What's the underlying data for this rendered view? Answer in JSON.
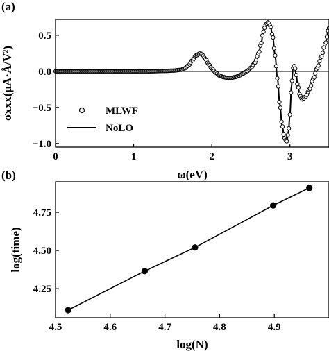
{
  "chart_data": [
    {
      "panel_label": "(a)",
      "type": "line",
      "xlabel": "ω(eV)",
      "ylabel": "σxxx(μA·Å/V²)",
      "xlim": [
        0,
        3.5
      ],
      "ylim": [
        -1.05,
        0.72
      ],
      "xticks": [
        0,
        1,
        2,
        3
      ],
      "yticks": [
        -1.0,
        -0.5,
        0.0,
        0.5
      ],
      "ytick_labels": [
        "−1.0",
        "−0.5",
        "0.0",
        "0.5"
      ],
      "zero_line": true,
      "legend": {
        "position": "bottom-left",
        "entries": [
          "MLWF",
          "NoLO"
        ]
      },
      "series": [
        {
          "name": "MLWF",
          "style": "open-circle-markers",
          "x": [
            0.0,
            0.2,
            0.4,
            0.6,
            0.8,
            1.0,
            1.2,
            1.4,
            1.5,
            1.6,
            1.65,
            1.7,
            1.75,
            1.8,
            1.85,
            1.88,
            1.92,
            1.96,
            2.0,
            2.05,
            2.1,
            2.15,
            2.2,
            2.25,
            2.3,
            2.35,
            2.4,
            2.45,
            2.5,
            2.55,
            2.6,
            2.63,
            2.66,
            2.69,
            2.72,
            2.75,
            2.78,
            2.81,
            2.84,
            2.87,
            2.9,
            2.93,
            2.96,
            2.98,
            3.0,
            3.02,
            3.04,
            3.06,
            3.08,
            3.1,
            3.13,
            3.16,
            3.2,
            3.25,
            3.3,
            3.35,
            3.4,
            3.45,
            3.5
          ],
          "y": [
            0.0,
            0.0,
            0.0,
            0.0,
            0.0,
            0.0,
            0.0,
            0.005,
            0.01,
            0.02,
            0.04,
            0.08,
            0.15,
            0.22,
            0.25,
            0.23,
            0.17,
            0.1,
            0.04,
            -0.02,
            -0.06,
            -0.08,
            -0.09,
            -0.09,
            -0.08,
            -0.06,
            -0.03,
            0.0,
            0.05,
            0.12,
            0.25,
            0.38,
            0.55,
            0.65,
            0.68,
            0.63,
            0.48,
            0.22,
            -0.1,
            -0.45,
            -0.75,
            -0.93,
            -0.97,
            -0.85,
            -0.6,
            -0.2,
            0.05,
            0.08,
            -0.05,
            -0.2,
            -0.34,
            -0.39,
            -0.35,
            -0.25,
            -0.1,
            0.05,
            0.2,
            0.38,
            0.6
          ]
        },
        {
          "name": "NoLO",
          "style": "solid-line",
          "x": [
            0.0,
            0.2,
            0.4,
            0.6,
            0.8,
            1.0,
            1.2,
            1.4,
            1.5,
            1.6,
            1.65,
            1.7,
            1.75,
            1.8,
            1.85,
            1.88,
            1.92,
            1.96,
            2.0,
            2.05,
            2.1,
            2.15,
            2.2,
            2.25,
            2.3,
            2.35,
            2.4,
            2.45,
            2.5,
            2.55,
            2.6,
            2.63,
            2.66,
            2.69,
            2.72,
            2.75,
            2.78,
            2.81,
            2.84,
            2.87,
            2.9,
            2.93,
            2.96,
            2.98,
            3.0,
            3.02,
            3.04,
            3.06,
            3.08,
            3.1,
            3.13,
            3.16,
            3.2,
            3.25,
            3.3,
            3.35,
            3.4,
            3.45,
            3.5
          ],
          "y": [
            0.0,
            0.0,
            0.0,
            0.0,
            0.0,
            0.0,
            0.0,
            0.005,
            0.01,
            0.02,
            0.04,
            0.08,
            0.15,
            0.22,
            0.25,
            0.23,
            0.17,
            0.1,
            0.04,
            -0.02,
            -0.06,
            -0.08,
            -0.09,
            -0.09,
            -0.08,
            -0.06,
            -0.03,
            0.0,
            0.05,
            0.12,
            0.25,
            0.38,
            0.55,
            0.65,
            0.68,
            0.63,
            0.48,
            0.22,
            -0.1,
            -0.45,
            -0.75,
            -0.93,
            -0.97,
            -0.85,
            -0.6,
            -0.2,
            0.05,
            0.08,
            -0.05,
            -0.2,
            -0.34,
            -0.39,
            -0.35,
            -0.25,
            -0.1,
            0.05,
            0.2,
            0.38,
            0.6
          ]
        }
      ]
    },
    {
      "panel_label": "(b)",
      "type": "line",
      "xlabel": "log(N)",
      "ylabel": "log(time)",
      "xlim": [
        4.5,
        5.0
      ],
      "ylim": [
        4.06,
        4.95
      ],
      "xticks": [
        4.5,
        4.6,
        4.7,
        4.8,
        4.9
      ],
      "xtick_labels": [
        "4.5",
        "4.6",
        "4.7",
        "4.8",
        "4.9"
      ],
      "yticks": [
        4.25,
        4.5,
        4.75
      ],
      "ytick_labels": [
        "4.25",
        "4.50",
        "4.75"
      ],
      "series": [
        {
          "style": "line-with-filled-markers",
          "x": [
            4.523,
            4.663,
            4.755,
            4.898,
            4.964
          ],
          "y": [
            4.11,
            4.365,
            4.52,
            4.795,
            4.91
          ]
        }
      ]
    }
  ]
}
